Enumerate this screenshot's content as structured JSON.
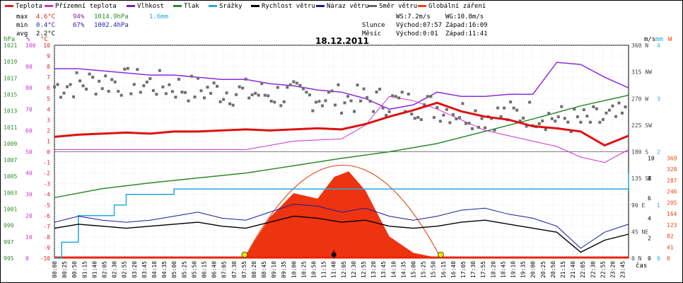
{
  "legend": [
    {
      "label": "Teplota",
      "color": "#dd2222"
    },
    {
      "label": "Přízemní teplota",
      "color": "#cc33cc"
    },
    {
      "label": "Vlhkost",
      "color": "#7a1fb0"
    },
    {
      "label": "Tlak",
      "color": "#2d8a2d"
    },
    {
      "label": "Srážky",
      "color": "#22aadd"
    },
    {
      "label": "Rychlost větru",
      "color": "#000000"
    },
    {
      "label": "Náraz větru",
      "color": "#1a1a88"
    },
    {
      "label": "Směr větru",
      "color": "#666666"
    },
    {
      "label": "Globální záření",
      "color": "#ee4411"
    }
  ],
  "stats": {
    "max": {
      "label": "max",
      "temp": "4.6°C",
      "hum": "94%",
      "press": "1014.9hPa",
      "rain": "1.6mm"
    },
    "min": {
      "label": "min",
      "temp": "0.4°C",
      "hum": "67%",
      "press": "1002.4hPa"
    },
    "avg": {
      "label": "avg",
      "temp": "2.2°C"
    }
  },
  "sun": {
    "ws": "WS:7.2m/s",
    "wg": "WG:10.8m/s",
    "slunce": "Slunce",
    "sun_rise": "Východ:07:57",
    "sun_set": "Západ:16:09",
    "mesic": "Měsíc",
    "moon_rise": "Východ:0:01",
    "moon_set": "Západ:11:41"
  },
  "title": "18.12.2011",
  "units": {
    "hpa": "hPa",
    "pct": "%",
    "degc": "°C",
    "ms": "m/s",
    "mm": "mm",
    "w": "W",
    "cas": "čas"
  },
  "chart_data": {
    "type": "line",
    "title": "18.12.2011",
    "x_labels": [
      "00:00",
      "00:25",
      "00:50",
      "01:15",
      "01:40",
      "02:05",
      "02:30",
      "02:55",
      "03:20",
      "03:45",
      "04:10",
      "04:35",
      "05:00",
      "05:25",
      "05:50",
      "06:15",
      "06:40",
      "07:05",
      "07:30",
      "07:55",
      "08:20",
      "08:45",
      "09:10",
      "09:35",
      "10:00",
      "10:25",
      "10:50",
      "11:15",
      "11:40",
      "12:05",
      "12:30",
      "12:55",
      "13:20",
      "13:45",
      "14:10",
      "14:35",
      "15:00",
      "15:25",
      "15:50",
      "16:15",
      "16:40",
      "17:05",
      "17:30",
      "17:55",
      "18:20",
      "18:45",
      "19:10",
      "19:35",
      "20:00",
      "20:25",
      "20:50",
      "21:15",
      "21:40",
      "22:05",
      "22:30",
      "22:55",
      "23:20",
      "23:45"
    ],
    "axes": {
      "pressure_hpa": {
        "ticks": [
          "1021",
          "1019",
          "1017",
          "1015",
          "1013",
          "1011",
          "1009",
          "1007",
          "1005",
          "1003",
          "1001",
          "999",
          "997",
          "995"
        ]
      },
      "humidity_pct": {
        "ticks": [
          "100",
          "90",
          "80",
          "70",
          "60",
          "50",
          "40",
          "30",
          "20",
          "10",
          "0"
        ]
      },
      "temperature_c": {
        "ticks": [
          "10",
          "9",
          "8",
          "7",
          "6",
          "5",
          "4",
          "3",
          "2",
          "1",
          "0",
          "-1",
          "-2",
          "-3",
          "-4",
          "-5",
          "-6",
          "-7",
          "-8",
          "-9",
          "-10"
        ]
      },
      "wind_dir": {
        "ticks": [
          "360 N",
          "315 NW",
          "270 W",
          "225 SW",
          "180 S",
          "135 SE",
          "90 E",
          "45 NE",
          "0 N"
        ]
      },
      "wind_ms": {
        "ticks": [
          "10",
          "8",
          "6",
          "4",
          "2",
          "0"
        ]
      },
      "rain_mm": {
        "ticks": [
          "4",
          "3",
          "2",
          "1",
          "0"
        ]
      },
      "solar_w": {
        "ticks": [
          "369",
          "328",
          "287",
          "246",
          "205",
          "164",
          "123",
          "82",
          "41",
          "0"
        ]
      }
    },
    "series": [
      {
        "name": "Teplota",
        "unit": "°C",
        "x": [
          0,
          1,
          2,
          3,
          4,
          5,
          6,
          7,
          8,
          9,
          10,
          11,
          12,
          13,
          14,
          15,
          16,
          17,
          18,
          19,
          20,
          21,
          22,
          23,
          24
        ],
        "values": [
          1.4,
          1.6,
          1.7,
          1.8,
          1.7,
          1.9,
          1.9,
          2.0,
          2.1,
          2.0,
          2.1,
          2.2,
          2.1,
          2.6,
          3.3,
          3.9,
          4.6,
          3.8,
          3.3,
          3.0,
          2.4,
          2.2,
          1.9,
          0.6,
          1.5
        ]
      },
      {
        "name": "Přízemní teplota",
        "unit": "°C",
        "x": [
          0,
          1,
          2,
          3,
          4,
          5,
          6,
          7,
          8,
          9,
          10,
          11,
          12,
          13,
          14,
          15,
          16,
          17,
          18,
          19,
          20,
          21,
          22,
          23,
          24
        ],
        "values": [
          0.2,
          0.2,
          0.2,
          0.2,
          0.2,
          0.2,
          0.2,
          0.2,
          0.2,
          0.6,
          1.0,
          1.1,
          1.2,
          2.5,
          5.2,
          4.8,
          4.0,
          3.0,
          2.0,
          1.5,
          1.0,
          0.5,
          -0.5,
          -1.0,
          0.2
        ]
      },
      {
        "name": "Vlhkost",
        "unit": "%",
        "x": [
          0,
          1,
          2,
          3,
          4,
          5,
          6,
          7,
          8,
          9,
          10,
          11,
          12,
          13,
          14,
          15,
          16,
          17,
          18,
          19,
          20,
          21,
          22,
          23,
          24
        ],
        "values": [
          89,
          89,
          88,
          87,
          86,
          86,
          85,
          84,
          84,
          82,
          81,
          79,
          78,
          75,
          70,
          72,
          78,
          76,
          76,
          77,
          77,
          92,
          91,
          85,
          80
        ]
      },
      {
        "name": "Tlak",
        "unit": "hPa",
        "x": [
          0,
          2,
          4,
          6,
          8,
          10,
          12,
          14,
          16,
          18,
          20,
          22,
          24
        ],
        "values": [
          1002.4,
          1003.5,
          1004.2,
          1004.8,
          1005.4,
          1006.3,
          1007.2,
          1008.0,
          1009.0,
          1010.5,
          1012.0,
          1013.6,
          1014.9
        ]
      },
      {
        "name": "Srážky",
        "unit": "mm",
        "x": [
          0,
          0.3,
          1,
          2,
          2.5,
          3,
          5,
          6,
          10,
          24
        ],
        "values": [
          0,
          0.3,
          0.8,
          0.8,
          1.0,
          1.2,
          1.3,
          1.3,
          1.3,
          1.6
        ]
      },
      {
        "name": "Rychlost větru",
        "unit": "m/s",
        "x": [
          0,
          1,
          2,
          3,
          4,
          5,
          6,
          7,
          8,
          9,
          10,
          11,
          12,
          13,
          14,
          15,
          16,
          17,
          18,
          19,
          20,
          21,
          22,
          23,
          24
        ],
        "values": [
          3.0,
          3.4,
          3.2,
          3.0,
          3.2,
          3.4,
          3.6,
          3.2,
          3.0,
          3.6,
          4.2,
          4.0,
          3.6,
          3.8,
          3.2,
          3.0,
          3.2,
          3.6,
          3.8,
          3.4,
          3.0,
          2.6,
          0.6,
          1.8,
          2.4
        ]
      },
      {
        "name": "Náraz větru",
        "unit": "m/s",
        "x": [
          0,
          1,
          2,
          3,
          4,
          5,
          6,
          7,
          8,
          9,
          10,
          11,
          12,
          13,
          14,
          15,
          16,
          17,
          18,
          19,
          20,
          21,
          22,
          23,
          24
        ],
        "values": [
          3.6,
          4.2,
          3.8,
          3.6,
          3.8,
          4.2,
          4.6,
          4.0,
          3.8,
          4.6,
          5.4,
          5.2,
          4.6,
          5.0,
          4.2,
          3.8,
          4.2,
          4.8,
          5.0,
          4.4,
          4.0,
          3.2,
          1.0,
          2.6,
          3.4
        ]
      },
      {
        "name": "Směr větru",
        "unit": "°",
        "x": [
          0,
          2,
          4,
          6,
          8,
          10,
          12,
          14,
          16,
          18,
          20,
          22,
          24
        ],
        "values": [
          290,
          300,
          295,
          285,
          280,
          275,
          270,
          265,
          255,
          240,
          245,
          230,
          240
        ]
      },
      {
        "name": "Globální záření",
        "unit": "W",
        "x": [
          7.9,
          9,
          10,
          11,
          11.7,
          12.3,
          13,
          14,
          15,
          16.1
        ],
        "values": [
          0,
          150,
          240,
          220,
          300,
          320,
          250,
          80,
          20,
          0
        ]
      }
    ]
  }
}
